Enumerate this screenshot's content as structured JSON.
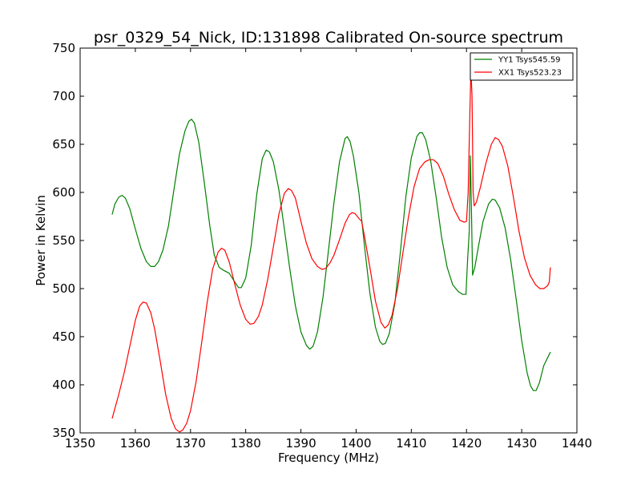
{
  "chart_data": {
    "type": "line",
    "title": "psr_0329_54_Nick, ID:131898 Calibrated On-source spectrum",
    "xlabel": "Frequency (MHz)",
    "ylabel": "Power in Kelvin",
    "xlim": [
      1350,
      1440
    ],
    "ylim": [
      350,
      750
    ],
    "xticks": [
      1350,
      1360,
      1370,
      1380,
      1390,
      1400,
      1410,
      1420,
      1430,
      1440
    ],
    "yticks": [
      350,
      400,
      450,
      500,
      550,
      600,
      650,
      700,
      750
    ],
    "grid": false,
    "legend_position": "top-right",
    "series": [
      {
        "name": "YY1 Tsys545.59",
        "color": "#008000",
        "points": [
          [
            1355.8,
            577
          ],
          [
            1356.3,
            588
          ],
          [
            1357.0,
            595
          ],
          [
            1357.6,
            597
          ],
          [
            1358.2,
            594
          ],
          [
            1359.0,
            583
          ],
          [
            1360.0,
            562
          ],
          [
            1361.0,
            542
          ],
          [
            1362.0,
            528
          ],
          [
            1362.8,
            523
          ],
          [
            1363.5,
            523
          ],
          [
            1364.2,
            528
          ],
          [
            1365.0,
            540
          ],
          [
            1366.0,
            565
          ],
          [
            1367.0,
            603
          ],
          [
            1368.0,
            640
          ],
          [
            1369.0,
            664
          ],
          [
            1369.7,
            674
          ],
          [
            1370.2,
            676
          ],
          [
            1370.7,
            672
          ],
          [
            1371.5,
            652
          ],
          [
            1372.5,
            610
          ],
          [
            1373.5,
            565
          ],
          [
            1374.3,
            535
          ],
          [
            1375.2,
            522
          ],
          [
            1376.0,
            519
          ],
          [
            1377.0,
            516
          ],
          [
            1378.0,
            507
          ],
          [
            1378.7,
            501
          ],
          [
            1379.2,
            501
          ],
          [
            1380.0,
            511
          ],
          [
            1381.0,
            545
          ],
          [
            1382.0,
            598
          ],
          [
            1383.0,
            635
          ],
          [
            1383.7,
            644
          ],
          [
            1384.3,
            642
          ],
          [
            1385.0,
            632
          ],
          [
            1386.0,
            603
          ],
          [
            1387.0,
            562
          ],
          [
            1388.0,
            520
          ],
          [
            1389.0,
            482
          ],
          [
            1390.0,
            455
          ],
          [
            1391.0,
            441
          ],
          [
            1391.6,
            437
          ],
          [
            1392.2,
            440
          ],
          [
            1393.0,
            455
          ],
          [
            1394.0,
            491
          ],
          [
            1395.0,
            540
          ],
          [
            1396.0,
            590
          ],
          [
            1397.0,
            632
          ],
          [
            1398.0,
            656
          ],
          [
            1398.4,
            658
          ],
          [
            1398.9,
            653
          ],
          [
            1399.5,
            638
          ],
          [
            1400.5,
            600
          ],
          [
            1401.5,
            545
          ],
          [
            1402.5,
            495
          ],
          [
            1403.5,
            460
          ],
          [
            1404.3,
            445
          ],
          [
            1404.8,
            442
          ],
          [
            1405.3,
            443
          ],
          [
            1406.0,
            453
          ],
          [
            1407.0,
            484
          ],
          [
            1408.0,
            537
          ],
          [
            1409.0,
            595
          ],
          [
            1410.0,
            636
          ],
          [
            1411.0,
            658
          ],
          [
            1411.5,
            662
          ],
          [
            1412.0,
            662
          ],
          [
            1412.6,
            655
          ],
          [
            1413.5,
            633
          ],
          [
            1414.5,
            595
          ],
          [
            1415.5,
            553
          ],
          [
            1416.5,
            522
          ],
          [
            1417.5,
            504
          ],
          [
            1418.5,
            497
          ],
          [
            1419.3,
            494
          ],
          [
            1419.9,
            494
          ],
          [
            1420.2,
            530
          ],
          [
            1420.5,
            560
          ],
          [
            1420.7,
            638
          ],
          [
            1420.9,
            580
          ],
          [
            1421.1,
            514
          ],
          [
            1421.5,
            522
          ],
          [
            1422.2,
            545
          ],
          [
            1423.0,
            570
          ],
          [
            1424.0,
            588
          ],
          [
            1424.7,
            593
          ],
          [
            1425.2,
            592
          ],
          [
            1426.0,
            584
          ],
          [
            1427.0,
            563
          ],
          [
            1428.0,
            530
          ],
          [
            1429.0,
            489
          ],
          [
            1430.0,
            446
          ],
          [
            1431.0,
            412
          ],
          [
            1431.6,
            399
          ],
          [
            1432.1,
            394
          ],
          [
            1432.6,
            394
          ],
          [
            1433.2,
            402
          ],
          [
            1434.0,
            420
          ],
          [
            1435.2,
            434
          ]
        ]
      },
      {
        "name": "XX1 Tsys523.23",
        "color": "#ff0000",
        "points": [
          [
            1355.8,
            365
          ],
          [
            1357.0,
            390
          ],
          [
            1358.0,
            413
          ],
          [
            1359.0,
            440
          ],
          [
            1360.0,
            467
          ],
          [
            1360.8,
            482
          ],
          [
            1361.4,
            486
          ],
          [
            1362.0,
            485
          ],
          [
            1362.8,
            475
          ],
          [
            1363.5,
            458
          ],
          [
            1364.5,
            425
          ],
          [
            1365.5,
            390
          ],
          [
            1366.5,
            365
          ],
          [
            1367.3,
            354
          ],
          [
            1368.0,
            351
          ],
          [
            1368.6,
            353
          ],
          [
            1369.3,
            360
          ],
          [
            1370.0,
            373
          ],
          [
            1371.0,
            403
          ],
          [
            1372.0,
            443
          ],
          [
            1373.0,
            485
          ],
          [
            1374.0,
            520
          ],
          [
            1375.0,
            538
          ],
          [
            1375.6,
            542
          ],
          [
            1376.2,
            540
          ],
          [
            1377.0,
            528
          ],
          [
            1378.0,
            505
          ],
          [
            1379.0,
            483
          ],
          [
            1380.0,
            468
          ],
          [
            1380.8,
            463
          ],
          [
            1381.5,
            464
          ],
          [
            1382.3,
            471
          ],
          [
            1383.0,
            483
          ],
          [
            1384.0,
            510
          ],
          [
            1385.0,
            543
          ],
          [
            1386.0,
            577
          ],
          [
            1387.0,
            599
          ],
          [
            1387.7,
            604
          ],
          [
            1388.3,
            602
          ],
          [
            1389.0,
            594
          ],
          [
            1390.0,
            570
          ],
          [
            1391.0,
            547
          ],
          [
            1392.0,
            531
          ],
          [
            1393.0,
            523
          ],
          [
            1393.8,
            520
          ],
          [
            1394.5,
            521
          ],
          [
            1395.3,
            527
          ],
          [
            1396.0,
            535
          ],
          [
            1397.0,
            551
          ],
          [
            1398.0,
            568
          ],
          [
            1398.8,
            577
          ],
          [
            1399.3,
            579
          ],
          [
            1399.8,
            578
          ],
          [
            1400.5,
            573
          ],
          [
            1401.0,
            570
          ],
          [
            1401.5,
            555
          ],
          [
            1402.5,
            522
          ],
          [
            1403.5,
            487
          ],
          [
            1404.5,
            465
          ],
          [
            1405.2,
            459
          ],
          [
            1405.8,
            462
          ],
          [
            1406.5,
            472
          ],
          [
            1407.5,
            500
          ],
          [
            1408.5,
            538
          ],
          [
            1409.5,
            575
          ],
          [
            1410.5,
            606
          ],
          [
            1411.5,
            625
          ],
          [
            1412.5,
            632
          ],
          [
            1413.3,
            634
          ],
          [
            1414.0,
            634
          ],
          [
            1414.8,
            630
          ],
          [
            1415.8,
            617
          ],
          [
            1416.8,
            598
          ],
          [
            1417.8,
            582
          ],
          [
            1418.8,
            571
          ],
          [
            1419.6,
            569
          ],
          [
            1420.0,
            570
          ],
          [
            1420.3,
            600
          ],
          [
            1420.6,
            680
          ],
          [
            1420.8,
            728
          ],
          [
            1421.0,
            700
          ],
          [
            1421.2,
            600
          ],
          [
            1421.4,
            586
          ],
          [
            1421.8,
            590
          ],
          [
            1422.5,
            605
          ],
          [
            1423.5,
            630
          ],
          [
            1424.5,
            650
          ],
          [
            1425.2,
            657
          ],
          [
            1425.8,
            655
          ],
          [
            1426.5,
            648
          ],
          [
            1427.5,
            627
          ],
          [
            1428.5,
            595
          ],
          [
            1429.5,
            560
          ],
          [
            1430.5,
            532
          ],
          [
            1431.5,
            514
          ],
          [
            1432.5,
            504
          ],
          [
            1433.3,
            500
          ],
          [
            1434.0,
            500
          ],
          [
            1434.7,
            503
          ],
          [
            1435.0,
            507
          ],
          [
            1435.2,
            522
          ]
        ]
      }
    ]
  }
}
